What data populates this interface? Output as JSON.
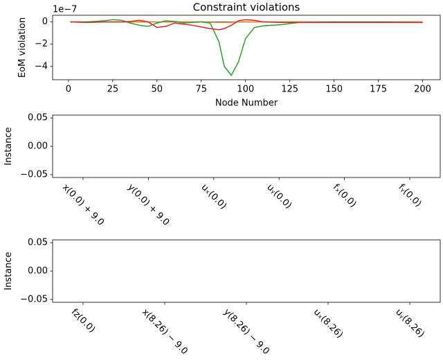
{
  "chart_data": [
    {
      "type": "line",
      "title": "Constraint violations",
      "xlabel": "Node Number",
      "ylabel": "EoM violation",
      "offset_text": "1e−7",
      "x": [
        1,
        10,
        20,
        25,
        30,
        35,
        40,
        45,
        50,
        55,
        60,
        65,
        70,
        75,
        80,
        85,
        88,
        92,
        96,
        100,
        105,
        110,
        120,
        130,
        150,
        175,
        200
      ],
      "series": [
        {
          "color": "#1f77b4",
          "values": [
            0,
            0,
            0,
            0,
            0,
            0,
            0,
            0,
            0,
            0,
            0,
            0,
            0,
            0,
            0,
            0,
            0,
            0,
            0,
            0,
            0,
            0,
            0,
            0,
            0,
            0,
            0
          ]
        },
        {
          "color": "#ff7f0e",
          "values": [
            0,
            0,
            0,
            0,
            0,
            0,
            0,
            0,
            0,
            0,
            0,
            0,
            0,
            0,
            -0.02,
            -0.05,
            -0.05,
            -0.03,
            0,
            0,
            0,
            0,
            0,
            0,
            0,
            0,
            0
          ]
        },
        {
          "color": "#2ca02c",
          "values": [
            0,
            0,
            0.1,
            0.2,
            0.15,
            -0.1,
            -0.3,
            -0.4,
            -0.1,
            0.1,
            0.05,
            -0.1,
            -0.05,
            0,
            -0.1,
            -1.8,
            -4.0,
            -4.8,
            -3.6,
            -1.5,
            -0.5,
            -0.35,
            -0.25,
            -0.05,
            0,
            0,
            -0.05
          ]
        },
        {
          "color": "#d62728",
          "values": [
            0,
            -0.05,
            0,
            0,
            0,
            0.05,
            0.15,
            0,
            -0.5,
            -0.4,
            -0.1,
            -0.2,
            -0.3,
            -0.45,
            -0.6,
            -0.7,
            -0.6,
            -0.3,
            0.1,
            0.2,
            0.15,
            0,
            -0.05,
            -0.05,
            -0.05,
            -0.05,
            -0.05
          ]
        }
      ],
      "xlim": [
        -8.95,
        209.95
      ],
      "xticks": [
        0,
        25,
        50,
        75,
        100,
        125,
        150,
        175,
        200
      ],
      "ylim": [
        -5.2,
        0.6
      ],
      "yticks": [
        0,
        {
          "value": -2,
          "label": "−2"
        },
        {
          "value": -4,
          "label": "−4"
        }
      ]
    },
    {
      "type": "scatter",
      "ylabel": "Instance",
      "categories": [
        "x(0.0) + 9.0",
        "y(0.0) + 9.0",
        "uₓ(0.0)",
        "uᵧ(0.0)",
        "fₓ(0.0)",
        "fᵧ(0.0)"
      ],
      "ylim": [
        -0.055,
        0.055
      ],
      "yticks": [
        0.05,
        {
          "value": 0,
          "label": "0.00"
        },
        {
          "value": -0.05,
          "label": "−0.05"
        }
      ]
    },
    {
      "type": "scatter",
      "ylabel": "Instance",
      "categories": [
        "fz(0.0)",
        "x(8.26) − 9.0",
        "y(8.26) − 9.0",
        "uₓ(8.26)",
        "uᵧ(8.26)"
      ],
      "ylim": [
        -0.055,
        0.055
      ],
      "yticks": [
        0.05,
        {
          "value": 0,
          "label": "0.00"
        },
        {
          "value": -0.05,
          "label": "−0.05"
        }
      ]
    }
  ]
}
